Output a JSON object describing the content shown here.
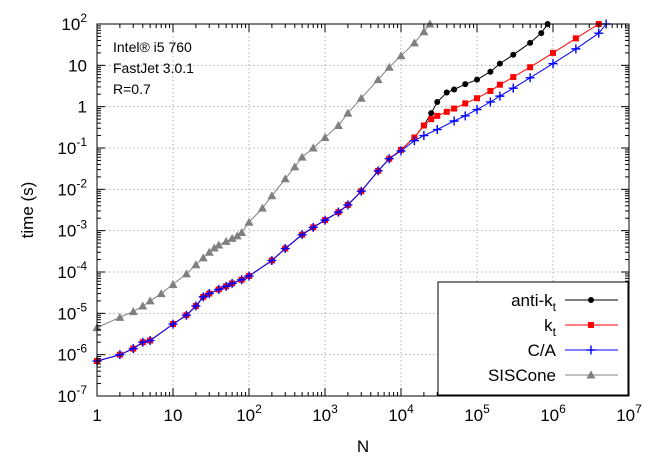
{
  "chart_data": {
    "type": "line",
    "xlabel": "N",
    "ylabel": "time (s)",
    "xscale": "log",
    "yscale": "log",
    "xlim": [
      1,
      10000000
    ],
    "ylim": [
      1e-07,
      100
    ],
    "grid": true,
    "legend_position": "bottom-right",
    "x_ticks": [
      {
        "value": 1,
        "label": "1"
      },
      {
        "value": 10,
        "label": "10"
      },
      {
        "value": 100,
        "base": "10",
        "exp": "2"
      },
      {
        "value": 1000,
        "base": "10",
        "exp": "3"
      },
      {
        "value": 10000,
        "base": "10",
        "exp": "4"
      },
      {
        "value": 100000,
        "base": "10",
        "exp": "5"
      },
      {
        "value": 1000000,
        "base": "10",
        "exp": "6"
      },
      {
        "value": 10000000,
        "base": "10",
        "exp": "7"
      }
    ],
    "y_ticks": [
      {
        "value": 1e-07,
        "base": "10",
        "exp": "-7"
      },
      {
        "value": 1e-06,
        "base": "10",
        "exp": "-6"
      },
      {
        "value": 1e-05,
        "base": "10",
        "exp": "-5"
      },
      {
        "value": 0.0001,
        "base": "10",
        "exp": "-4"
      },
      {
        "value": 0.001,
        "base": "10",
        "exp": "-3"
      },
      {
        "value": 0.01,
        "base": "10",
        "exp": "-2"
      },
      {
        "value": 0.1,
        "base": "10",
        "exp": "-1"
      },
      {
        "value": 1,
        "label": "1"
      },
      {
        "value": 10,
        "label": "10"
      },
      {
        "value": 100,
        "base": "10",
        "exp": "2"
      }
    ],
    "annotations": [
      "Intel® i5 760",
      "FastJet 3.0.1",
      "R=0.7"
    ],
    "series": [
      {
        "name": "anti-k",
        "name_sub": "t",
        "color": "#000000",
        "marker": "circle",
        "x": [
          1,
          2,
          3,
          4,
          5,
          10,
          15,
          20,
          25,
          30,
          40,
          50,
          60,
          80,
          100,
          200,
          300,
          500,
          700,
          1000,
          1500,
          2000,
          3000,
          5000,
          7000,
          10000,
          15000,
          20000,
          25000,
          30000,
          40000,
          50000,
          70000,
          100000,
          150000,
          200000,
          300000,
          500000,
          700000,
          850000
        ],
        "y": [
          7e-07,
          1e-06,
          1.4e-06,
          2e-06,
          2.2e-06,
          5.5e-06,
          9e-06,
          1.5e-05,
          2.5e-05,
          3e-05,
          3.8e-05,
          4.5e-05,
          5.3e-05,
          6.5e-05,
          8e-05,
          0.00019,
          0.00037,
          0.0008,
          0.0012,
          0.0018,
          0.0028,
          0.0042,
          0.009,
          0.028,
          0.055,
          0.09,
          0.18,
          0.35,
          0.7,
          1.3,
          2.2,
          2.6,
          3.5,
          4.5,
          7,
          11,
          18,
          35,
          60,
          100
        ]
      },
      {
        "name": "k",
        "name_sub": "t",
        "color": "#ff0000",
        "marker": "square",
        "x": [
          1,
          2,
          3,
          4,
          5,
          10,
          15,
          20,
          25,
          30,
          40,
          50,
          60,
          80,
          100,
          200,
          300,
          500,
          700,
          1000,
          1500,
          2000,
          3000,
          5000,
          7000,
          10000,
          15000,
          20000,
          25000,
          30000,
          40000,
          50000,
          70000,
          100000,
          150000,
          200000,
          300000,
          500000,
          1000000,
          2000000,
          4000000
        ],
        "y": [
          7e-07,
          1e-06,
          1.4e-06,
          2e-06,
          2.2e-06,
          5.5e-06,
          9e-06,
          1.5e-05,
          2.5e-05,
          3e-05,
          3.8e-05,
          4.5e-05,
          5.3e-05,
          6.5e-05,
          8e-05,
          0.00019,
          0.00037,
          0.0008,
          0.0012,
          0.0018,
          0.0028,
          0.0042,
          0.009,
          0.028,
          0.055,
          0.09,
          0.18,
          0.35,
          0.5,
          0.6,
          0.75,
          0.9,
          1.2,
          1.6,
          2.4,
          3.4,
          5.2,
          9,
          20,
          45,
          100
        ]
      },
      {
        "name": "C/A",
        "color": "#0000ff",
        "marker": "plus",
        "x": [
          1,
          2,
          3,
          4,
          5,
          10,
          15,
          20,
          25,
          30,
          40,
          50,
          60,
          80,
          100,
          200,
          300,
          500,
          700,
          1000,
          1500,
          2000,
          3000,
          5000,
          7000,
          10000,
          15000,
          20000,
          30000,
          50000,
          70000,
          100000,
          150000,
          200000,
          300000,
          500000,
          1000000,
          2000000,
          4000000,
          5000000
        ],
        "y": [
          7e-07,
          1e-06,
          1.4e-06,
          2e-06,
          2.2e-06,
          5.5e-06,
          9e-06,
          1.5e-05,
          2.5e-05,
          3e-05,
          3.8e-05,
          4.5e-05,
          5.3e-05,
          6.5e-05,
          8e-05,
          0.00019,
          0.00037,
          0.0008,
          0.0012,
          0.0018,
          0.0028,
          0.0042,
          0.009,
          0.028,
          0.055,
          0.085,
          0.15,
          0.2,
          0.28,
          0.45,
          0.6,
          0.85,
          1.3,
          1.8,
          2.8,
          5,
          11,
          25,
          60,
          100
        ]
      },
      {
        "name": "SISCone",
        "color": "#808080",
        "marker": "triangle",
        "x": [
          1,
          2,
          3,
          4,
          5,
          7,
          10,
          15,
          20,
          25,
          30,
          35,
          40,
          50,
          60,
          70,
          80,
          100,
          150,
          200,
          300,
          400,
          500,
          700,
          1000,
          1500,
          2000,
          3000,
          5000,
          7000,
          10000,
          15000,
          20000,
          24000
        ],
        "y": [
          4.5e-06,
          8e-06,
          1.1e-05,
          1.5e-05,
          2e-05,
          3e-05,
          5e-05,
          9e-05,
          0.00015,
          0.00022,
          0.0003,
          0.00038,
          0.00045,
          0.00055,
          0.00065,
          0.00075,
          0.0009,
          0.0016,
          0.0035,
          0.007,
          0.018,
          0.035,
          0.06,
          0.1,
          0.18,
          0.35,
          0.7,
          1.6,
          4.5,
          9,
          17,
          35,
          65,
          100
        ]
      }
    ]
  }
}
